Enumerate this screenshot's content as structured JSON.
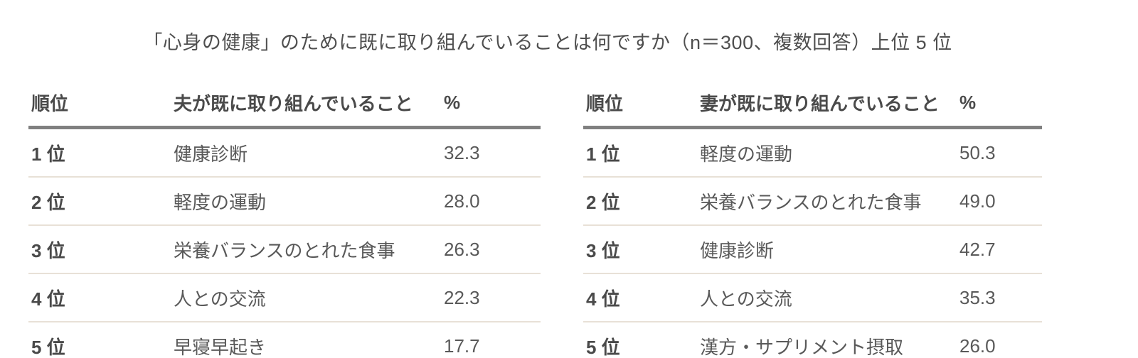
{
  "title": "「心身の健康」のために既に取り組んでいることは何ですか（n＝300、複数回答）上位 5 位",
  "colors": {
    "text": "#4f4f4f",
    "header_rule": "#808080",
    "row_rule": "#e8e1d7"
  },
  "chart_data": [
    {
      "type": "table",
      "title": "夫が既に取り組んでいること",
      "columns": [
        "順位",
        "夫が既に取り組んでいること",
        "%"
      ],
      "rows": [
        {
          "rank": "1 位",
          "item": "健康診断",
          "pct": "32.3"
        },
        {
          "rank": "2 位",
          "item": "軽度の運動",
          "pct": "28.0"
        },
        {
          "rank": "3 位",
          "item": "栄養バランスのとれた食事",
          "pct": "26.3"
        },
        {
          "rank": "4 位",
          "item": "人との交流",
          "pct": "22.3"
        },
        {
          "rank": "5 位",
          "item": "早寝早起き",
          "pct": "17.7"
        }
      ]
    },
    {
      "type": "table",
      "title": "妻が既に取り組んでいること",
      "columns": [
        "順位",
        "妻が既に取り組んでいること",
        "%"
      ],
      "rows": [
        {
          "rank": "1 位",
          "item": "軽度の運動",
          "pct": "50.3"
        },
        {
          "rank": "2 位",
          "item": "栄養バランスのとれた食事",
          "pct": "49.0"
        },
        {
          "rank": "3 位",
          "item": "健康診断",
          "pct": "42.7"
        },
        {
          "rank": "4 位",
          "item": "人との交流",
          "pct": "35.3"
        },
        {
          "rank": "5 位",
          "item": "漢方・サプリメント摂取",
          "pct": "26.0"
        }
      ]
    }
  ]
}
